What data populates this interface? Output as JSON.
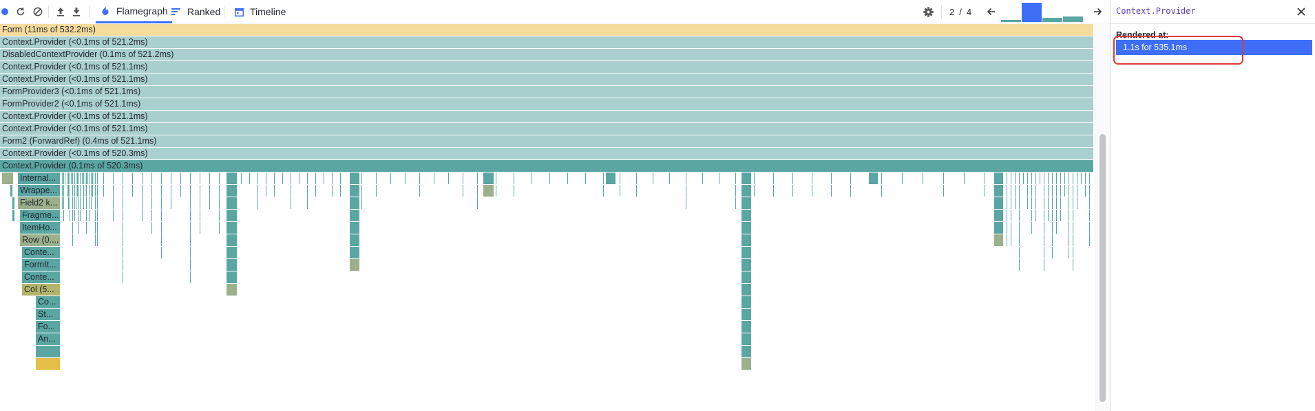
{
  "toolbar": {
    "tabs": [
      {
        "label": "Flamegraph",
        "active": true
      },
      {
        "label": "Ranked",
        "active": false
      },
      {
        "label": "Timeline",
        "active": false
      }
    ],
    "commit_current": "2",
    "commit_separator": "/",
    "commit_total": "4",
    "record_color": "#3d6ef5"
  },
  "commit_bars": [
    {
      "index": 1,
      "relative_duration": 0.1,
      "selected": false
    },
    {
      "index": 2,
      "relative_duration": 1.0,
      "selected": true
    },
    {
      "index": 3,
      "relative_duration": 0.2,
      "selected": false
    },
    {
      "index": 4,
      "relative_duration": 0.28,
      "selected": false
    }
  ],
  "flamegraph": {
    "rows": [
      {
        "label": "Form (11ms of 532.2ms)",
        "kind": "parent"
      },
      {
        "label": "Context.Provider (<0.1ms of 521.2ms)",
        "kind": "ancestor"
      },
      {
        "label": "DisabledContextProvider (0.1ms of 521.2ms)",
        "kind": "ancestor"
      },
      {
        "label": "Context.Provider (<0.1ms of 521.1ms)",
        "kind": "ancestor"
      },
      {
        "label": "Context.Provider (<0.1ms of 521.1ms)",
        "kind": "ancestor"
      },
      {
        "label": "FormProvider3 (<0.1ms of 521.1ms)",
        "kind": "ancestor"
      },
      {
        "label": "FormProvider2 (<0.1ms of 521.1ms)",
        "kind": "ancestor"
      },
      {
        "label": "Context.Provider (<0.1ms of 521.1ms)",
        "kind": "ancestor"
      },
      {
        "label": "Context.Provider (<0.1ms of 521.1ms)",
        "kind": "ancestor"
      },
      {
        "label": "Form2 (ForwardRef) (0.4ms of 521.1ms)",
        "kind": "ancestor"
      },
      {
        "label": "Context.Provider (<0.1ms of 520.3ms)",
        "kind": "ancestor"
      },
      {
        "label": "Context.Provider (0.1ms of 520.3ms)",
        "kind": "selected"
      }
    ],
    "child_labels": [
      "Internal...",
      "Wrappe...",
      "Field2 k...",
      "Fragme...",
      "ItemHo...",
      "Row (0....",
      "Conte...",
      "FormIt...",
      "Conte...",
      "Col (5...",
      "Co...",
      "St...",
      "Fo...",
      "An...",
      "",
      ""
    ],
    "colors": {
      "parent": "#f5dc9d",
      "ancestor": "#a9cfce",
      "selected": "#5aa6a3",
      "teal": "#5aa6a3",
      "olive": "#9bb08b",
      "olive_yellow": "#b3b46c",
      "yellow": "#e4be45"
    }
  },
  "sidepanel": {
    "title": "Context.Provider",
    "rendered_at_label": "Rendered at:",
    "renders": [
      {
        "label": "1.1s for 535.1ms",
        "selected": true
      }
    ]
  }
}
